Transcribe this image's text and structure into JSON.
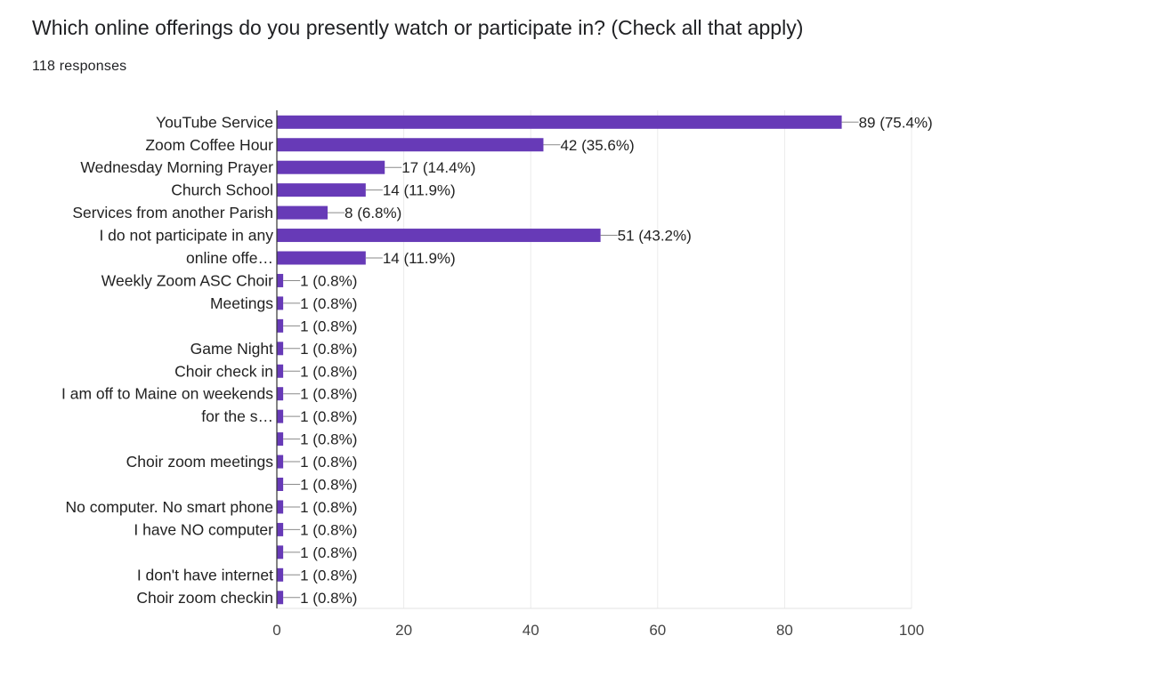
{
  "question": {
    "title": "Which online offerings do you presently watch or participate in? (Check all that apply)",
    "responses": "118 responses"
  },
  "chart_data": {
    "type": "bar",
    "orientation": "horizontal",
    "bar_color": "#673ab7",
    "xlim": [
      0,
      100
    ],
    "x_ticks": [
      0,
      20,
      40,
      60,
      80,
      100
    ],
    "grid": true,
    "rows": [
      {
        "label": [
          "YouTube Service"
        ],
        "value": 89,
        "data_label": "89 (75.4%)"
      },
      {
        "label": [
          "Zoom Coffee Hour"
        ],
        "value": 42,
        "data_label": "42 (35.6%)"
      },
      {
        "label": [
          "Wednesday Morning Prayer"
        ],
        "value": 17,
        "data_label": "17 (14.4%)"
      },
      {
        "label": [
          "Church School"
        ],
        "value": 14,
        "data_label": "14 (11.9%)"
      },
      {
        "label": [
          "Services from another Parish"
        ],
        "value": 8,
        "data_label": "8 (6.8%)"
      },
      {
        "label": [
          "I do not participate in any",
          "online offe…"
        ],
        "value": 51,
        "data_label": "51 (43.2%)"
      },
      {
        "label": [],
        "value": 14,
        "data_label": "14 (11.9%)"
      },
      {
        "label": [
          "Weekly Zoom ASC Choir",
          "Meetings"
        ],
        "value": 1,
        "data_label": "1 (0.8%)"
      },
      {
        "label": [],
        "value": 1,
        "data_label": "1 (0.8%)"
      },
      {
        "label": [],
        "value": 1,
        "data_label": "1 (0.8%)"
      },
      {
        "label": [
          "Game Night"
        ],
        "value": 1,
        "data_label": "1 (0.8%)"
      },
      {
        "label": [
          "Choir check in"
        ],
        "value": 1,
        "data_label": "1 (0.8%)"
      },
      {
        "label": [
          "I am off to Maine on weekends",
          "for the s…"
        ],
        "value": 1,
        "data_label": "1 (0.8%)"
      },
      {
        "label": [],
        "value": 1,
        "data_label": "1 (0.8%)"
      },
      {
        "label": [],
        "value": 1,
        "data_label": "1 (0.8%)"
      },
      {
        "label": [
          "Choir zoom meetings"
        ],
        "value": 1,
        "data_label": "1 (0.8%)"
      },
      {
        "label": [],
        "value": 1,
        "data_label": "1 (0.8%)"
      },
      {
        "label": [
          "No computer. No smart phone"
        ],
        "value": 1,
        "data_label": "1 (0.8%)"
      },
      {
        "label": [
          "I have NO computer"
        ],
        "value": 1,
        "data_label": "1 (0.8%)"
      },
      {
        "label": [],
        "value": 1,
        "data_label": "1 (0.8%)"
      },
      {
        "label": [
          "I don't have internet"
        ],
        "value": 1,
        "data_label": "1 (0.8%)"
      },
      {
        "label": [
          "Choir zoom checkin"
        ],
        "value": 1,
        "data_label": "1 (0.8%)"
      }
    ]
  }
}
